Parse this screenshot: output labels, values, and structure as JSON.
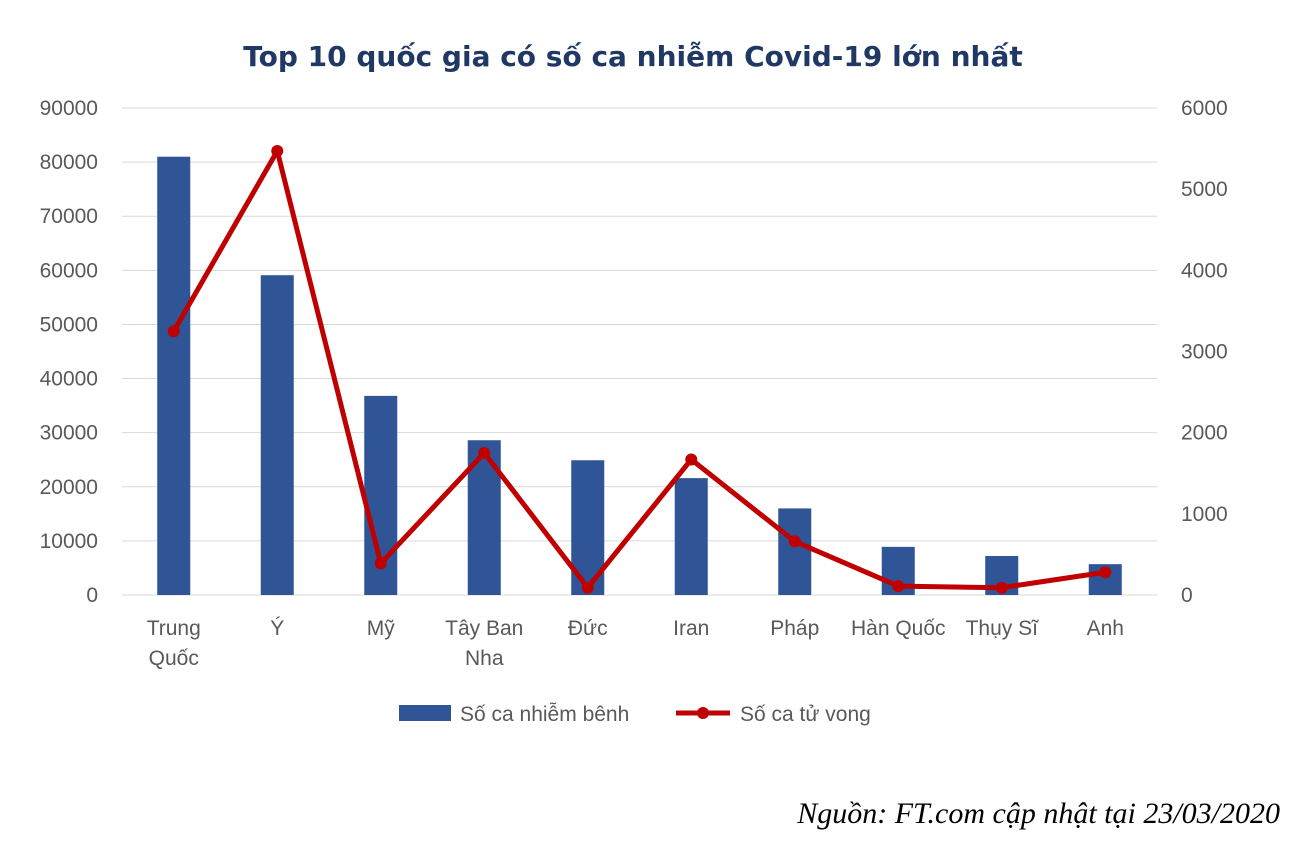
{
  "chart_data": {
    "type": "bar",
    "title": "Top 10 quốc gia có số ca nhiễm Covid-19 lớn nhất",
    "categories": [
      [
        "Trung",
        "Quốc"
      ],
      [
        "Ý"
      ],
      [
        "Mỹ"
      ],
      [
        "Tây Ban",
        "Nha"
      ],
      [
        "Đức"
      ],
      [
        "Iran"
      ],
      [
        "Pháp"
      ],
      [
        "Hàn Quốc"
      ],
      [
        "Thụy Sĩ"
      ],
      [
        "Anh"
      ]
    ],
    "series": [
      {
        "name": "Số ca nhiễm bênh",
        "type": "bar",
        "axis": "left",
        "color": "#2f5597",
        "values": [
          81000,
          59100,
          36800,
          28600,
          24900,
          21600,
          16000,
          8900,
          7200,
          5700
        ]
      },
      {
        "name": "Số ca tử vong",
        "type": "line",
        "axis": "right",
        "color": "#c00000",
        "values": [
          3250,
          5470,
          390,
          1750,
          90,
          1670,
          660,
          110,
          90,
          280
        ]
      }
    ],
    "ylim_left": [
      0,
      90000
    ],
    "yticks_left": [
      "0",
      "10000",
      "20000",
      "30000",
      "40000",
      "50000",
      "60000",
      "70000",
      "80000",
      "90000"
    ],
    "ylim_right": [
      0,
      6000
    ],
    "yticks_right": [
      "0",
      "1000",
      "2000",
      "3000",
      "4000",
      "5000",
      "6000"
    ],
    "grid": true,
    "legend_position": "bottom"
  },
  "source_note": "Nguồn: FT.com cập nhật tại 23/03/2020"
}
